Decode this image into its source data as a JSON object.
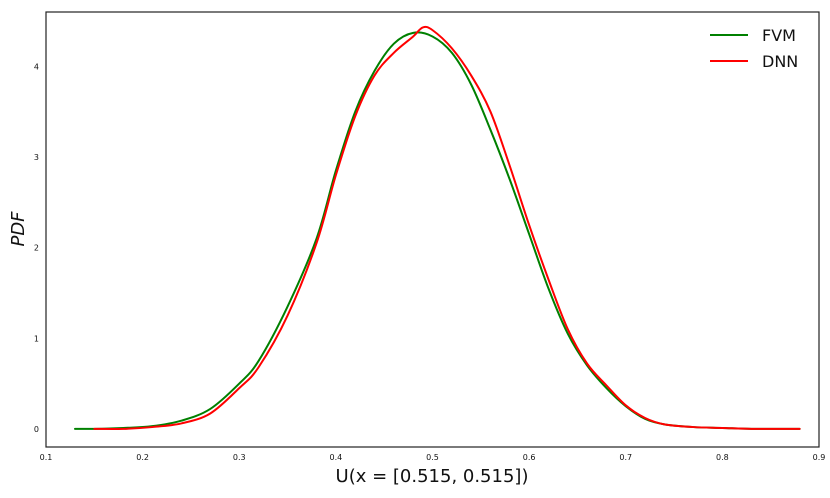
{
  "chart_data": {
    "type": "line",
    "title": "",
    "xlabel": "U(x = [0.515, 0.515])",
    "ylabel": "PDF",
    "xlim": [
      0.1,
      0.9
    ],
    "ylim": [
      -0.2,
      4.6
    ],
    "xticks": [
      0.1,
      0.2,
      0.3,
      0.4,
      0.5,
      0.6,
      0.7,
      0.8,
      0.9
    ],
    "xtick_labels": [
      "0.1",
      "0.2",
      "0.3",
      "0.4",
      "0.5",
      "0.6",
      "0.7",
      "0.8",
      "0.9"
    ],
    "yticks": [
      0,
      1,
      2,
      3,
      4
    ],
    "ytick_labels": [
      "0",
      "1",
      "2",
      "3",
      "4"
    ],
    "grid": false,
    "legend": "top-right",
    "series": [
      {
        "name": "FVM",
        "color": "#008000",
        "x": [
          0.13,
          0.15,
          0.18,
          0.21,
          0.24,
          0.27,
          0.3,
          0.32,
          0.35,
          0.38,
          0.4,
          0.42,
          0.44,
          0.46,
          0.48,
          0.5,
          0.52,
          0.54,
          0.56,
          0.58,
          0.6,
          0.62,
          0.64,
          0.66,
          0.68,
          0.7,
          0.72,
          0.74,
          0.77,
          0.8,
          0.83,
          0.86,
          0.88
        ],
        "y": [
          0.0,
          0.0,
          0.01,
          0.03,
          0.09,
          0.22,
          0.5,
          0.75,
          1.35,
          2.1,
          2.85,
          3.5,
          3.95,
          4.25,
          4.37,
          4.33,
          4.15,
          3.8,
          3.3,
          2.75,
          2.15,
          1.55,
          1.05,
          0.7,
          0.45,
          0.25,
          0.11,
          0.05,
          0.02,
          0.01,
          0.0,
          0.0,
          0.0
        ]
      },
      {
        "name": "DNN",
        "color": "#ff0000",
        "x": [
          0.15,
          0.18,
          0.21,
          0.24,
          0.27,
          0.3,
          0.32,
          0.35,
          0.38,
          0.4,
          0.42,
          0.44,
          0.46,
          0.48,
          0.49,
          0.5,
          0.52,
          0.54,
          0.56,
          0.58,
          0.6,
          0.62,
          0.64,
          0.66,
          0.68,
          0.7,
          0.72,
          0.74,
          0.77,
          0.8,
          0.83,
          0.86,
          0.88
        ],
        "y": [
          0.0,
          0.0,
          0.02,
          0.06,
          0.17,
          0.45,
          0.68,
          1.25,
          2.05,
          2.8,
          3.45,
          3.9,
          4.15,
          4.33,
          4.43,
          4.4,
          4.2,
          3.9,
          3.5,
          2.9,
          2.25,
          1.65,
          1.1,
          0.72,
          0.48,
          0.26,
          0.12,
          0.05,
          0.02,
          0.01,
          0.0,
          0.0,
          0.0
        ]
      }
    ]
  }
}
